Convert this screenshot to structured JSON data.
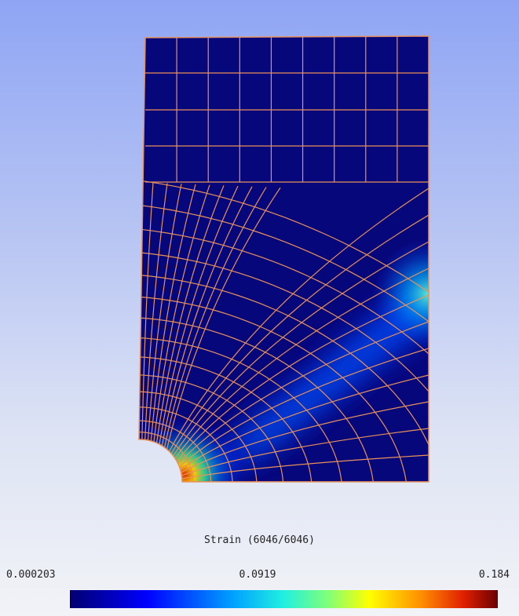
{
  "viewer": {
    "background_top": "#8fa5f4",
    "background_bottom": "#f2f3f7",
    "mesh_line_color": "#e8915a",
    "field_low_color": "#07077c"
  },
  "legend": {
    "title": "Strain (6046/6046)",
    "min_label": "0.000203",
    "mid_label": "0.0919",
    "max_label": "0.184",
    "min_value": 0.000203,
    "mid_value": 0.0919,
    "max_value": 0.184,
    "colormap": [
      "#02006e",
      "#0000ff",
      "#00a0ff",
      "#20f0e0",
      "#7cff7c",
      "#ffff00",
      "#ff9000",
      "#e02000",
      "#6a0000"
    ]
  }
}
